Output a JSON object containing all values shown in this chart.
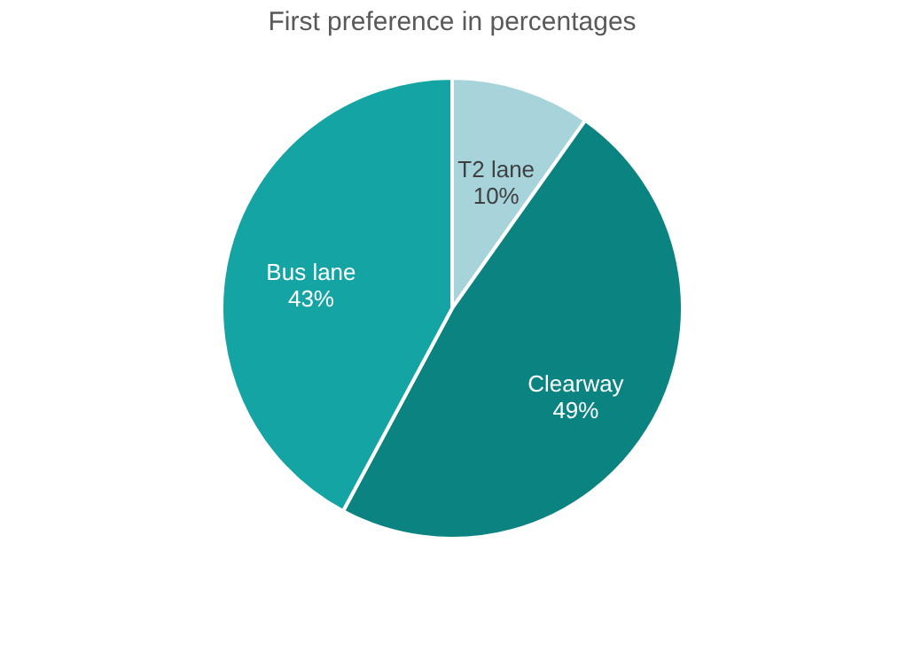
{
  "chart_data": {
    "type": "pie",
    "title": "First preference in percentages",
    "categories": [
      "T2 lane",
      "Clearway",
      "Bus lane"
    ],
    "values": [
      10,
      49,
      43
    ],
    "value_labels": [
      "10%",
      "49%",
      "43%"
    ],
    "colors": [
      "#a6d4da",
      "#0a8381",
      "#14a4a4"
    ],
    "legend": false
  }
}
